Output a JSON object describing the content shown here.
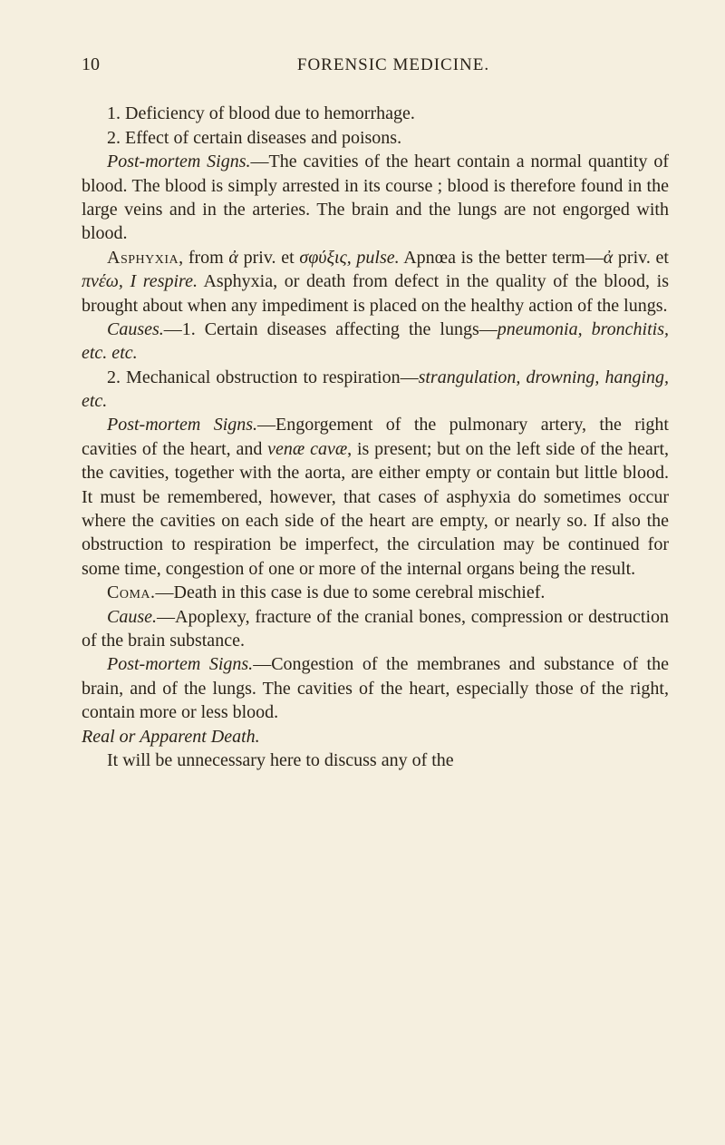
{
  "header": {
    "page_number": "10",
    "running_head": "FORENSIC MEDICINE."
  },
  "paragraphs": {
    "p1": "1. Deficiency of blood due to hemorrhage.",
    "p2": "2. Effect of certain diseases and poisons.",
    "p3a": "Post-mortem Signs.",
    "p3b": "—The cavities of the heart contain a normal quantity of blood. The blood is simply arrested in its course ; blood is therefore found in the large veins and in the arteries. The brain and the lungs are not engorged with blood.",
    "p4a": "Asphyxia",
    "p4b": ", from ",
    "p4c": "ἀ",
    "p4d": " priv. et ",
    "p4e": "σφύξις, pulse.",
    "p4f": " Apnœa is the better term—",
    "p4g": "ἀ",
    "p4h": " priv. et ",
    "p4i": "πνέω, I respire.",
    "p4j": " Asphyxia, or death from defect in the quality of the blood, is brought about when any impediment is placed on the healthy action of the lungs.",
    "p5a": "Causes.",
    "p5b": "—1. Certain diseases affecting the lungs—",
    "p5c": "pneumonia, bronchitis, etc. etc.",
    "p6a": "2. Mechanical obstruction to respiration—",
    "p6b": "strangulation, drowning, hanging, etc.",
    "p7a": "Post-mortem Signs.",
    "p7b": "—Engorgement of the pulmonary artery, the right cavities of the heart, and ",
    "p7c": "venæ cavæ",
    "p7d": ", is present; but on the left side of the heart, the cavities, together with the aorta, are either empty or contain but little blood. It must be remembered, however, that cases of asphyxia do sometimes occur where the cavities on each side of the heart are empty, or nearly so. If also the obstruction to respiration be imperfect, the circulation may be continued for some time, congestion of one or more of the internal organs being the result.",
    "p8a": "Coma.",
    "p8b": "—Death in this case is due to some cerebral mischief.",
    "p9a": "Cause.",
    "p9b": "—Apoplexy, fracture of the cranial bones, compression or destruction of the brain substance.",
    "p10a": "Post-mortem Signs.",
    "p10b": "—Congestion of the membranes and substance of the brain, and of the lungs. The cavities of the heart, especially those of the right, contain more or less blood.",
    "section_head": "Real or Apparent Death.",
    "p11": "It will be unnecessary here to discuss any of the"
  }
}
